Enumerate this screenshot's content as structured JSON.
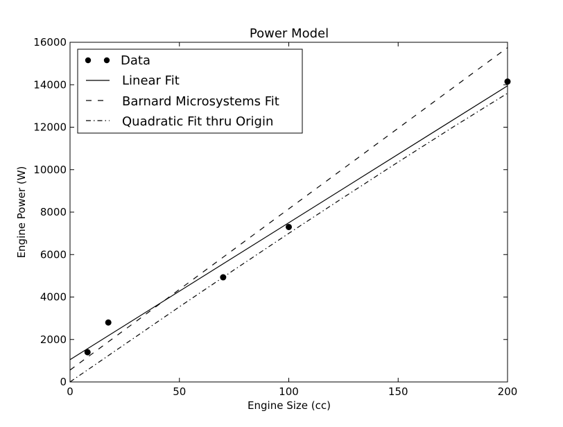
{
  "chart_data": {
    "type": "line",
    "title": "Power Model",
    "xlabel": "Engine Size (cc)",
    "ylabel": "Engine Power (W)",
    "xlim": [
      0,
      200
    ],
    "ylim": [
      0,
      16000
    ],
    "xticks": [
      0,
      50,
      100,
      150,
      200
    ],
    "yticks": [
      0,
      2000,
      4000,
      6000,
      8000,
      10000,
      12000,
      14000,
      16000
    ],
    "grid": false,
    "legend_position": "top-left",
    "series": [
      {
        "name": "Data",
        "kind": "scatter",
        "x": [
          8,
          17.5,
          70,
          100,
          200
        ],
        "y": [
          1400,
          2800,
          4930,
          7300,
          14150
        ]
      },
      {
        "name": "Linear Fit",
        "kind": "line",
        "style": "solid",
        "x": [
          0,
          200
        ],
        "y": [
          1050,
          13950
        ]
      },
      {
        "name": "Barnard Microsystems Fit",
        "kind": "line",
        "style": "dashed",
        "x": [
          0,
          200
        ],
        "y": [
          560,
          15750
        ]
      },
      {
        "name": "Quadratic Fit thru Origin",
        "kind": "line",
        "style": "dashdot",
        "x": [
          0,
          25,
          50,
          75,
          100,
          125,
          150,
          175,
          200
        ],
        "y": [
          0,
          1770,
          3540,
          5280,
          7000,
          8690,
          10360,
          12000,
          13600
        ]
      }
    ]
  }
}
